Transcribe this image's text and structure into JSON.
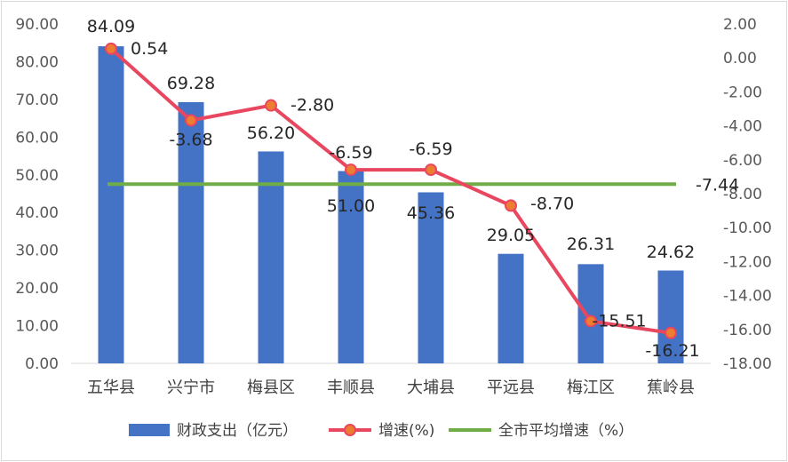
{
  "chart_data": {
    "type": "bar+line",
    "categories": [
      "五华县",
      "兴宁市",
      "梅县区",
      "丰顺县",
      "大埔县",
      "平远县",
      "梅江区",
      "蕉岭县"
    ],
    "series": [
      {
        "name": "财政支出（亿元）",
        "type": "bar",
        "axis": "left",
        "color": "#4472c4",
        "values": [
          84.09,
          69.28,
          56.2,
          51.0,
          45.36,
          29.05,
          26.31,
          24.62
        ],
        "labels": [
          "84.09",
          "69.28",
          "56.20",
          "51.00",
          "45.36",
          "29.05",
          "26.31",
          "24.62"
        ]
      },
      {
        "name": "增速(%)",
        "type": "line",
        "axis": "right",
        "color": "#e8475f",
        "marker_fill": "#ed7d31",
        "values": [
          0.54,
          -3.68,
          -2.8,
          -6.59,
          -6.59,
          -8.7,
          -15.51,
          -16.21
        ],
        "labels": [
          "0.54",
          "-3.68",
          "-2.80",
          "-6.59",
          "-6.59",
          "-8.70",
          "-15.51",
          "-16.21"
        ]
      },
      {
        "name": "全市平均增速（%）",
        "type": "line",
        "axis": "right",
        "color": "#70ad47",
        "values": [
          -7.44,
          -7.44,
          -7.44,
          -7.44,
          -7.44,
          -7.44,
          -7.44,
          -7.44
        ],
        "end_label": "-7.44"
      }
    ],
    "y_left": {
      "min": 0,
      "max": 90,
      "ticks": [
        "0.00",
        "10.00",
        "20.00",
        "30.00",
        "40.00",
        "50.00",
        "60.00",
        "70.00",
        "80.00",
        "90.00"
      ]
    },
    "y_right": {
      "min": -18,
      "max": 2,
      "ticks": [
        "2.00",
        "0.00",
        "-2.00",
        "-4.00",
        "-6.00",
        "-8.00",
        "-10.00",
        "-12.00",
        "-14.00",
        "-16.00",
        "-18.00"
      ]
    },
    "grid": false,
    "legend": "bottom"
  }
}
